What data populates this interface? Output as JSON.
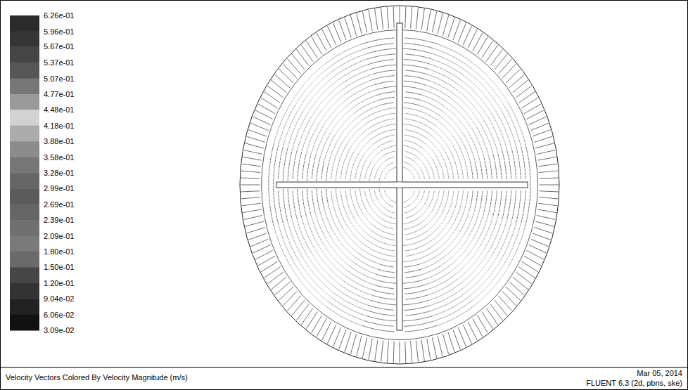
{
  "chart_data": {
    "type": "vector_field",
    "title": "Velocity Vectors Colored By Velocity Magnitude (m/s)",
    "annotations": [
      "Mar 05, 2014",
      "FLUENT 6.3 (2d, pbns, ske)"
    ],
    "colorbar": {
      "range": [
        0.0309,
        0.626
      ],
      "ticks": [
        {
          "value": 0.626,
          "label": "6.26e-01"
        },
        {
          "value": 0.596,
          "label": "5.96e-01"
        },
        {
          "value": 0.567,
          "label": "5.67e-01"
        },
        {
          "value": 0.537,
          "label": "5.37e-01"
        },
        {
          "value": 0.507,
          "label": "5.07e-01"
        },
        {
          "value": 0.477,
          "label": "4.77e-01"
        },
        {
          "value": 0.448,
          "label": "4.48e-01"
        },
        {
          "value": 0.418,
          "label": "4.18e-01"
        },
        {
          "value": 0.388,
          "label": "3.88e-01"
        },
        {
          "value": 0.358,
          "label": "3.58e-01"
        },
        {
          "value": 0.328,
          "label": "3.28e-01"
        },
        {
          "value": 0.299,
          "label": "2.99e-01"
        },
        {
          "value": 0.269,
          "label": "2.69e-01"
        },
        {
          "value": 0.239,
          "label": "2.39e-01"
        },
        {
          "value": 0.209,
          "label": "2.09e-01"
        },
        {
          "value": 0.18,
          "label": "1.80e-01"
        },
        {
          "value": 0.15,
          "label": "1.50e-01"
        },
        {
          "value": 0.12,
          "label": "1.20e-01"
        },
        {
          "value": 0.0904,
          "label": "9.04e-02"
        },
        {
          "value": 0.0606,
          "label": "6.06e-02"
        },
        {
          "value": 0.0309,
          "label": "3.09e-02"
        }
      ],
      "colors": [
        "#2b2b2b",
        "#353535",
        "#454545",
        "#565656",
        "#777777",
        "#9a9a9a",
        "#d2d2d2",
        "#acacac",
        "#8c8c8c",
        "#777777",
        "#666666",
        "#5b5b5b",
        "#666666",
        "#707070",
        "#7a7a7a",
        "#6a6a6a",
        "#464646",
        "#333333",
        "#222222",
        "#111111"
      ]
    }
  }
}
